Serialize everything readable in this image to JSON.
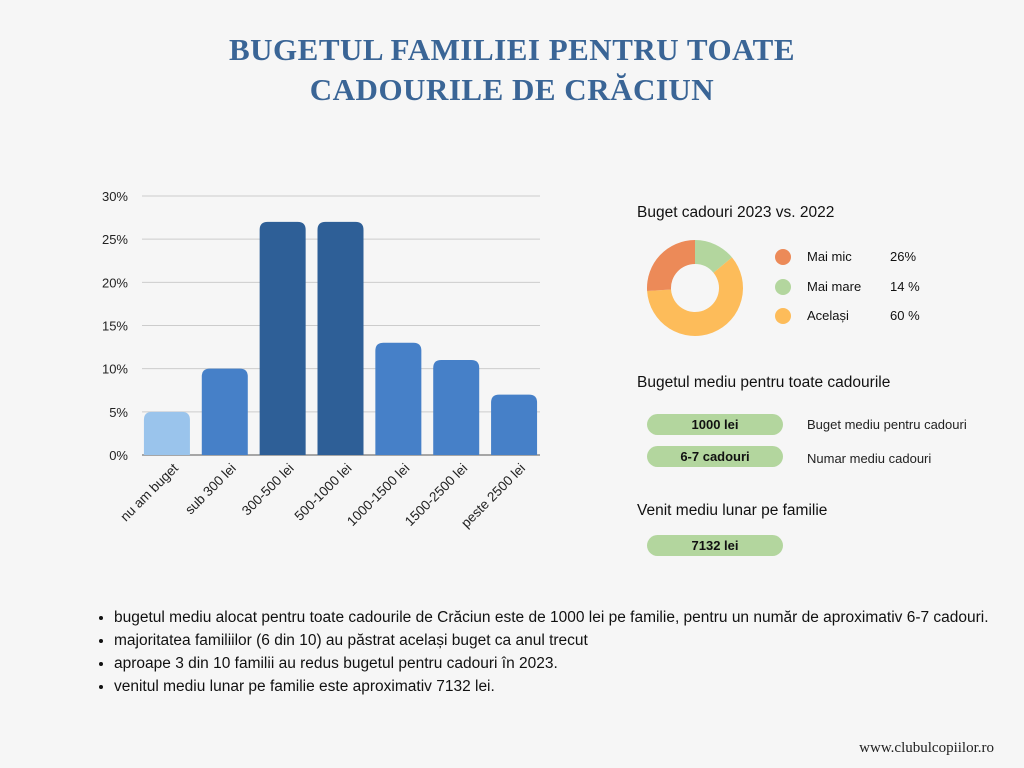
{
  "title_line1": "BUGETUL FAMILIEI PENTRU TOATE",
  "title_line2": "CADOURILE DE CRĂCIUN",
  "chart_data": [
    {
      "type": "bar",
      "categories": [
        "nu am buget",
        "sub 300 lei",
        "300-500 lei",
        "500-1000 lei",
        "1000-1500 lei",
        "1500-2500 lei",
        "peste 2500 lei"
      ],
      "values": [
        5,
        10,
        27,
        27,
        13,
        11,
        7
      ],
      "ylim": [
        0,
        30
      ],
      "yticks": [
        "0%",
        "5%",
        "10%",
        "15%",
        "20%",
        "25%",
        "30%"
      ],
      "grid": true,
      "colors": [
        "#9ac4ec",
        "#4680c8",
        "#2e5f97",
        "#2e5f97",
        "#4680c8",
        "#4680c8",
        "#4680c8"
      ]
    },
    {
      "type": "pie",
      "title": "Buget cadouri 2023 vs. 2022",
      "donut": true,
      "slices": [
        {
          "label": "Mai mare",
          "value": 14,
          "display": "14 %",
          "color": "#b3d69e"
        },
        {
          "label": "Același",
          "value": 60,
          "display": "60 %",
          "color": "#fdbc5a"
        },
        {
          "label": "Mai mic",
          "value": 26,
          "display": "26%",
          "color": "#ec8a58"
        }
      ],
      "legend_order": [
        "Mai mic",
        "Mai mare",
        "Același"
      ]
    }
  ],
  "budget": {
    "title": "Bugetul mediu pentru toate cadourile",
    "items": [
      {
        "value": "1000 lei",
        "label": "Buget mediu pentru cadouri"
      },
      {
        "value": "6-7 cadouri",
        "label": "Numar mediu cadouri"
      }
    ]
  },
  "income": {
    "title": "Venit mediu lunar pe familie",
    "value": "7132 lei"
  },
  "notes": [
    "bugetul mediu alocat pentru toate cadourile de Crăciun este de 1000 lei pe familie, pentru un număr de aproximativ 6-7 cadouri.",
    "majoritatea familiilor  (6 din 10) au păstrat același buget ca anul trecut",
    "aproape 3 din 10 familii au redus bugetul pentru cadouri în 2023.",
    "venitul mediu lunar pe familie este aproximativ 7132 lei."
  ],
  "footer": "www.clubulcopiilor.ro"
}
